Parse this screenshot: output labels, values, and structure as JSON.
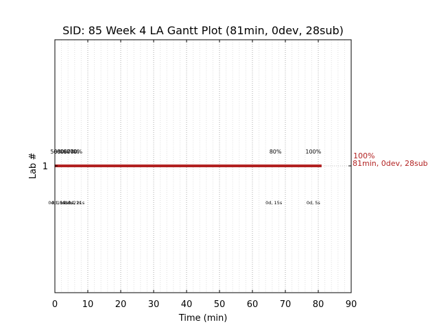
{
  "chart_data": {
    "type": "gantt",
    "title": "SID: 85 Week 4 LA Gantt Plot (81min, 0dev, 28sub)",
    "xlabel": "Time (min)",
    "ylabel": "Lab #",
    "xlim": [
      0,
      90
    ],
    "x_ticks": [
      "0",
      "10",
      "20",
      "30",
      "40",
      "50",
      "60",
      "70",
      "80",
      "90"
    ],
    "y_ticks": [
      "1"
    ],
    "grid": "vertical dotted",
    "bar": {
      "lab": "1",
      "start": 0,
      "end": 81,
      "color": "#b22222",
      "end_label_line1": "100%",
      "end_label_line2": "81min, 0dev, 28sub"
    },
    "annotations_above": [
      {
        "x": 0.5,
        "text": "50%"
      },
      {
        "x": 1.5,
        "text": "60%"
      },
      {
        "x": 2.5,
        "text": "60%"
      },
      {
        "x": 4.5,
        "text": "60%"
      },
      {
        "x": 5.5,
        "text": "70%"
      },
      {
        "x": 6.5,
        "text": "70%"
      },
      {
        "x": 67,
        "text": "80%"
      },
      {
        "x": 78.5,
        "text": "100%"
      }
    ],
    "annotations_below": [
      {
        "x": 0.5,
        "text": "0d, 15s"
      },
      {
        "x": 1.5,
        "text": "0d, 15s"
      },
      {
        "x": 3.5,
        "text": "0d, 3s"
      },
      {
        "x": 5.5,
        "text": "0d, 21s"
      },
      {
        "x": 6.5,
        "text": "0d, 21s"
      },
      {
        "x": 66.5,
        "text": "0d, 15s"
      },
      {
        "x": 78.5,
        "text": "0d, 5s"
      }
    ]
  }
}
